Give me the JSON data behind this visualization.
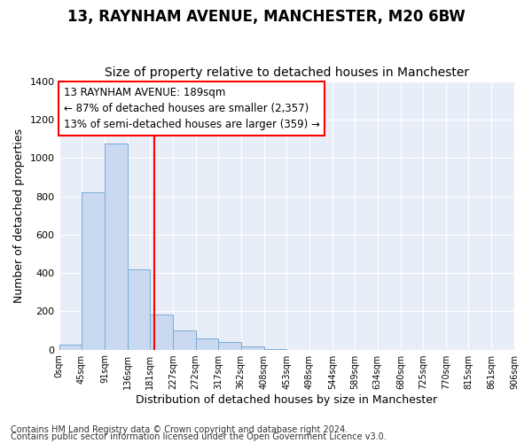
{
  "title": "13, RAYNHAM AVENUE, MANCHESTER, M20 6BW",
  "subtitle": "Size of property relative to detached houses in Manchester",
  "xlabel": "Distribution of detached houses by size in Manchester",
  "ylabel": "Number of detached properties",
  "footer_line1": "Contains HM Land Registry data © Crown copyright and database right 2024.",
  "footer_line2": "Contains public sector information licensed under the Open Government Licence v3.0.",
  "annotation_line1": "13 RAYNHAM AVENUE: 189sqm",
  "annotation_line2": "← 87% of detached houses are smaller (2,357)",
  "annotation_line3": "13% of semi-detached houses are larger (359) →",
  "bar_edges": [
    0,
    45,
    91,
    136,
    181,
    227,
    272,
    317,
    362,
    408,
    453,
    498,
    544,
    589,
    634,
    680,
    725,
    770,
    815,
    861,
    906
  ],
  "bar_heights": [
    25,
    820,
    1075,
    420,
    185,
    100,
    60,
    40,
    15,
    5,
    0,
    0,
    0,
    0,
    0,
    0,
    0,
    0,
    0,
    0
  ],
  "bar_color": "#c9d9f0",
  "bar_edge_color": "#7aacd6",
  "red_line_x": 189,
  "ylim": [
    0,
    1400
  ],
  "yticks": [
    0,
    200,
    400,
    600,
    800,
    1000,
    1200,
    1400
  ],
  "plot_bg_color": "#e8eef8",
  "grid_color": "#ffffff",
  "fig_bg_color": "#ffffff",
  "title_fontsize": 12,
  "subtitle_fontsize": 10,
  "xlabel_fontsize": 9,
  "ylabel_fontsize": 9,
  "annot_fontsize": 8.5,
  "footer_fontsize": 7
}
